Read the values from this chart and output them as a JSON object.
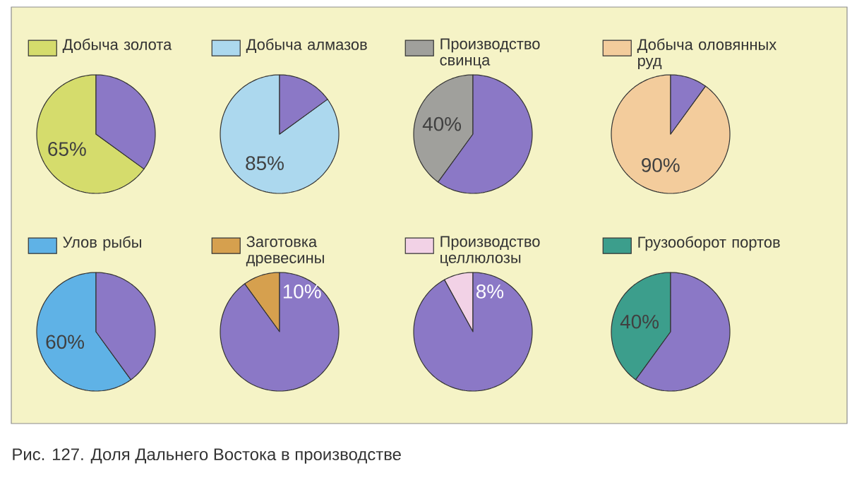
{
  "chart_data": [
    {
      "type": "pie",
      "categories": [
        "Добыча золота",
        null
      ],
      "values": [
        65,
        35
      ],
      "colors": [
        "#d5dc6c",
        "#8b78c6"
      ],
      "value_labels": [
        "65%",
        null
      ],
      "legend": "top",
      "annotations": [
        "Рис. 127. Доля Дальнего Востока в производстве"
      ]
    },
    {
      "type": "pie",
      "categories": [
        "Добыча алмазов",
        null
      ],
      "values": [
        85,
        15
      ],
      "colors": [
        "#acd8ee",
        "#8b78c6"
      ],
      "value_labels": [
        "85%",
        null
      ],
      "legend": "top"
    },
    {
      "type": "pie",
      "categories": [
        "Производство свинца",
        null
      ],
      "values": [
        40,
        60
      ],
      "colors": [
        "#a0a09c",
        "#8b78c6"
      ],
      "value_labels": [
        "40%",
        null
      ],
      "legend": "top"
    },
    {
      "type": "pie",
      "categories": [
        "Добыча оловянных руд",
        null
      ],
      "values": [
        90,
        10
      ],
      "colors": [
        "#f3cc9c",
        "#8b78c6"
      ],
      "value_labels": [
        "90%",
        null
      ],
      "legend": "top"
    },
    {
      "type": "pie",
      "categories": [
        "Улов рыбы",
        null
      ],
      "values": [
        60,
        40
      ],
      "colors": [
        "#5fb2e6",
        "#8b78c6"
      ],
      "value_labels": [
        "60%",
        null
      ],
      "legend": "top"
    },
    {
      "type": "pie",
      "categories": [
        "Заготовка древесины",
        null
      ],
      "values": [
        10,
        90
      ],
      "colors": [
        "#d6a04e",
        "#8b78c6"
      ],
      "value_labels": [
        "10%",
        null
      ],
      "legend": "top"
    },
    {
      "type": "pie",
      "categories": [
        "Производство целлюлозы",
        null
      ],
      "values": [
        8,
        92
      ],
      "colors": [
        "#f2d2e6",
        "#8b78c6"
      ],
      "value_labels": [
        "8%",
        null
      ],
      "legend": "top"
    },
    {
      "type": "pie",
      "categories": [
        "Грузооборот портов",
        null
      ],
      "values": [
        40,
        60
      ],
      "colors": [
        "#3c9e8c",
        "#8b78c6"
      ],
      "value_labels": [
        "40%",
        null
      ],
      "legend": "top"
    }
  ]
}
